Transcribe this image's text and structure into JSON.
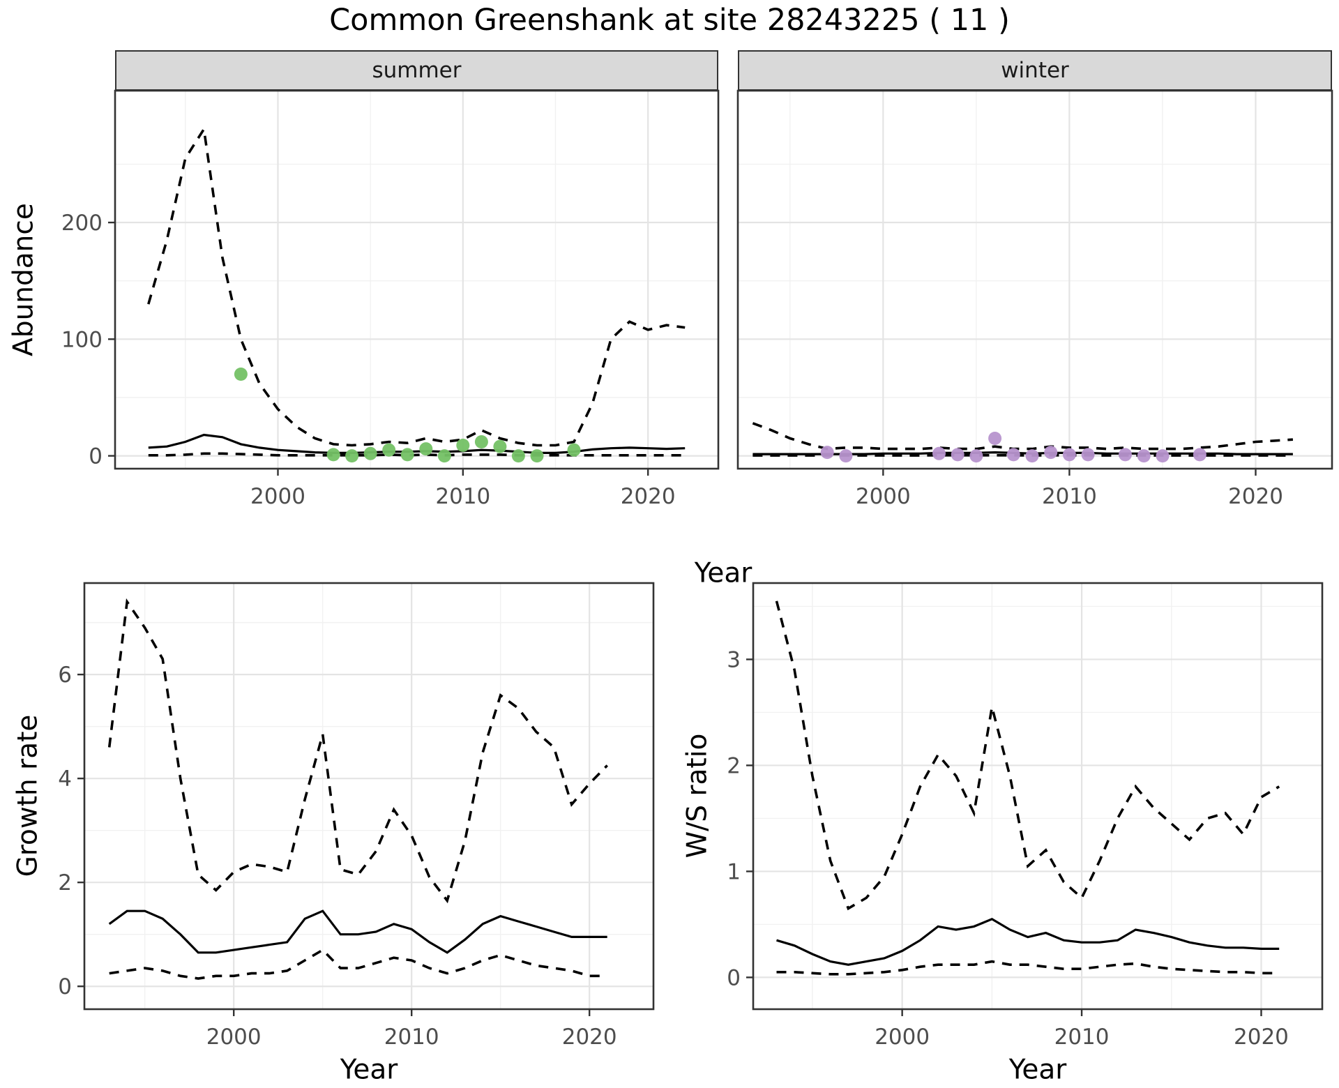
{
  "title": "Common Greenshank at site 28243225 ( 11 )",
  "top_row": {
    "y_axis_title": "Abundance",
    "x_axis_title": "Year",
    "facets": [
      {
        "label": "summer"
      },
      {
        "label": "winter"
      }
    ]
  },
  "bottom_row": {
    "growth": {
      "y_axis_title": "Growth rate",
      "x_axis_title": "Year"
    },
    "ws": {
      "y_axis_title": "W/S ratio",
      "x_axis_title": "Year"
    }
  },
  "colors": {
    "summer_point": "#74C165",
    "winter_point": "#B794CE",
    "line": "#000000",
    "panel_border": "#333333",
    "strip_bg": "#D9D9D9",
    "grid_major": "#E4E4E4",
    "grid_minor": "#F1F1F1",
    "tick_label": "#4d4d4d",
    "tick_mark": "#333333"
  },
  "chart_data": [
    {
      "id": "summer",
      "type": "line",
      "facet_label": "summer",
      "x_label": "Year",
      "y_label": "Abundance",
      "x_range": [
        1991.2,
        2023.8
      ],
      "y_range": [
        -11,
        313
      ],
      "x_ticks": [
        2000,
        2010,
        2020
      ],
      "x_minor": [
        1995,
        2005,
        2015
      ],
      "y_ticks": [
        0,
        100,
        200
      ],
      "y_minor": [
        50,
        150,
        250
      ],
      "x": [
        1993,
        1994,
        1995,
        1996,
        1997,
        1998,
        1999,
        2000,
        2001,
        2002,
        2003,
        2004,
        2005,
        2006,
        2007,
        2008,
        2009,
        2010,
        2011,
        2012,
        2013,
        2014,
        2015,
        2016,
        2017,
        2018,
        2019,
        2020,
        2021,
        2022
      ],
      "series": [
        {
          "name": "upper_95ci",
          "style": "dashed",
          "values": [
            130,
            185,
            255,
            280,
            170,
            100,
            62,
            40,
            25,
            15,
            10,
            9,
            10,
            12,
            11,
            15,
            12,
            14,
            22,
            15,
            11,
            9,
            9,
            12,
            45,
            100,
            115,
            108,
            112,
            110
          ]
        },
        {
          "name": "mean",
          "style": "solid",
          "values": [
            7,
            8,
            12,
            18,
            16,
            10,
            7,
            5,
            4,
            3,
            2.5,
            2.5,
            3,
            3.5,
            3.5,
            4,
            3.5,
            4,
            5,
            4.5,
            3.5,
            2.5,
            2.5,
            3.5,
            5.5,
            6.5,
            7,
            6.5,
            6,
            6.5
          ]
        },
        {
          "name": "lower_95ci",
          "style": "dashed",
          "values": [
            0.5,
            0.5,
            1,
            2,
            2,
            1.5,
            1,
            0.5,
            0.5,
            0.5,
            0.5,
            0.5,
            0.5,
            1,
            0.5,
            1,
            0.5,
            1,
            1,
            1,
            0.5,
            0.5,
            0.5,
            0.5,
            0.5,
            0.5,
            0.5,
            0.5,
            0.5,
            0.5
          ]
        }
      ],
      "points": {
        "name": "observed-counts-summer",
        "color_key": "summer_point",
        "years": [
          1998,
          2003,
          2004,
          2005,
          2006,
          2007,
          2008,
          2009,
          2010,
          2011,
          2012,
          2013,
          2014,
          2016
        ],
        "values": [
          70,
          1,
          0,
          2,
          5,
          1,
          6,
          0,
          9,
          12,
          8,
          0,
          0,
          5
        ]
      }
    },
    {
      "id": "winter",
      "type": "line",
      "facet_label": "winter",
      "x_label": "Year",
      "y_label": "Abundance",
      "x_range": [
        1992.2,
        2024.1
      ],
      "y_range": [
        -11,
        313
      ],
      "x_ticks": [
        2000,
        2010,
        2020
      ],
      "x_minor": [
        1995,
        2005,
        2015
      ],
      "y_ticks": [
        0,
        100,
        200
      ],
      "y_minor": [
        50,
        150,
        250
      ],
      "x": [
        1993,
        1994,
        1995,
        1996,
        1997,
        1998,
        1999,
        2000,
        2001,
        2002,
        2003,
        2004,
        2005,
        2006,
        2007,
        2008,
        2009,
        2010,
        2011,
        2012,
        2013,
        2014,
        2015,
        2016,
        2017,
        2018,
        2019,
        2020,
        2021,
        2022
      ],
      "series": [
        {
          "name": "upper_95ci",
          "style": "dashed",
          "values": [
            28,
            22,
            15,
            10,
            6,
            7,
            7,
            6,
            6,
            6,
            7,
            6,
            6,
            8,
            6,
            6,
            8,
            7,
            7,
            6,
            7,
            6,
            6,
            6,
            7,
            8,
            10,
            12,
            13,
            14
          ]
        },
        {
          "name": "mean",
          "style": "solid",
          "values": [
            1.5,
            1.5,
            1.5,
            1.5,
            1.5,
            1.5,
            1.5,
            2,
            2,
            2,
            2.5,
            2.5,
            2.5,
            3,
            2.5,
            2,
            2.5,
            2.5,
            2.5,
            2,
            2,
            2,
            2,
            2,
            2,
            2,
            1.5,
            1.5,
            1.5,
            1.5
          ]
        },
        {
          "name": "lower_95ci",
          "style": "dashed",
          "values": [
            0.3,
            0.3,
            0.3,
            0.3,
            0.3,
            0.3,
            0.3,
            0.3,
            0.3,
            0.3,
            0.5,
            0.5,
            0.5,
            0.5,
            0.5,
            0.3,
            0.5,
            0.5,
            0.5,
            0.3,
            0.3,
            0.3,
            0.3,
            0.3,
            0.3,
            0.3,
            0.3,
            0.3,
            0.3,
            0.3
          ]
        }
      ],
      "points": {
        "name": "observed-counts-winter",
        "color_key": "winter_point",
        "years": [
          1997,
          1998,
          2003,
          2004,
          2005,
          2006,
          2007,
          2008,
          2009,
          2010,
          2011,
          2013,
          2014,
          2015,
          2017
        ],
        "values": [
          3,
          0,
          2,
          1,
          0,
          15,
          1,
          0,
          3,
          1,
          1,
          1,
          0,
          0,
          1
        ]
      }
    },
    {
      "id": "growth",
      "type": "line",
      "facet_label": "",
      "x_label": "Year",
      "y_label": "Growth rate",
      "x_range": [
        1991.6,
        2023.6
      ],
      "y_range": [
        -0.44,
        7.76
      ],
      "x_ticks": [
        2000,
        2010,
        2020
      ],
      "x_minor": [
        1995,
        2005,
        2015
      ],
      "y_ticks": [
        0,
        2,
        4,
        6
      ],
      "y_minor": [
        1,
        3,
        5,
        7
      ],
      "x": [
        1993,
        1994,
        1995,
        1996,
        1997,
        1998,
        1999,
        2000,
        2001,
        2002,
        2003,
        2004,
        2005,
        2006,
        2007,
        2008,
        2009,
        2010,
        2011,
        2012,
        2013,
        2014,
        2015,
        2016,
        2017,
        2018,
        2019,
        2020,
        2021
      ],
      "series": [
        {
          "name": "upper_95ci",
          "style": "dashed",
          "values": [
            4.6,
            7.4,
            6.9,
            6.3,
            4.0,
            2.15,
            1.85,
            2.2,
            2.35,
            2.3,
            2.2,
            3.6,
            4.85,
            2.25,
            2.15,
            2.6,
            3.4,
            2.9,
            2.1,
            1.65,
            2.8,
            4.5,
            5.6,
            5.35,
            4.9,
            4.6,
            3.5,
            3.9,
            4.25
          ]
        },
        {
          "name": "mean",
          "style": "solid",
          "values": [
            1.2,
            1.45,
            1.45,
            1.3,
            1.0,
            0.65,
            0.65,
            0.7,
            0.75,
            0.8,
            0.85,
            1.3,
            1.45,
            1.0,
            1.0,
            1.05,
            1.2,
            1.1,
            0.85,
            0.65,
            0.9,
            1.2,
            1.35,
            1.25,
            1.15,
            1.05,
            0.95,
            0.95,
            0.95
          ]
        },
        {
          "name": "lower_95ci",
          "style": "dashed",
          "values": [
            0.25,
            0.3,
            0.35,
            0.3,
            0.2,
            0.15,
            0.2,
            0.2,
            0.25,
            0.25,
            0.3,
            0.5,
            0.7,
            0.35,
            0.35,
            0.45,
            0.55,
            0.5,
            0.35,
            0.25,
            0.35,
            0.5,
            0.6,
            0.5,
            0.4,
            0.35,
            0.3,
            0.2,
            0.2
          ]
        }
      ],
      "points": null
    },
    {
      "id": "ws",
      "type": "line",
      "facet_label": "",
      "x_label": "Year",
      "y_label": "W/S ratio",
      "x_range": [
        1991.7,
        2023.4
      ],
      "y_range": [
        -0.3,
        3.72
      ],
      "x_ticks": [
        2000,
        2010,
        2020
      ],
      "x_minor": [
        1995,
        2005,
        2015
      ],
      "y_ticks": [
        0,
        1,
        2,
        3
      ],
      "y_minor": [
        0.5,
        1.5,
        2.5,
        3.5
      ],
      "x": [
        1993,
        1994,
        1995,
        1996,
        1997,
        1998,
        1999,
        2000,
        2001,
        2002,
        2003,
        2004,
        2005,
        2006,
        2007,
        2008,
        2009,
        2010,
        2011,
        2012,
        2013,
        2014,
        2015,
        2016,
        2017,
        2018,
        2019,
        2020,
        2021
      ],
      "series": [
        {
          "name": "upper_95ci",
          "style": "dashed",
          "values": [
            3.55,
            2.9,
            1.9,
            1.1,
            0.65,
            0.75,
            0.95,
            1.35,
            1.8,
            2.1,
            1.9,
            1.55,
            2.55,
            1.9,
            1.05,
            1.2,
            0.9,
            0.75,
            1.1,
            1.5,
            1.8,
            1.6,
            1.45,
            1.3,
            1.5,
            1.55,
            1.35,
            1.7,
            1.8
          ]
        },
        {
          "name": "mean",
          "style": "solid",
          "values": [
            0.35,
            0.3,
            0.22,
            0.15,
            0.12,
            0.15,
            0.18,
            0.25,
            0.35,
            0.48,
            0.45,
            0.48,
            0.55,
            0.45,
            0.38,
            0.42,
            0.35,
            0.33,
            0.33,
            0.35,
            0.45,
            0.42,
            0.38,
            0.33,
            0.3,
            0.28,
            0.28,
            0.27,
            0.27
          ]
        },
        {
          "name": "lower_95ci",
          "style": "dashed",
          "values": [
            0.05,
            0.05,
            0.04,
            0.03,
            0.03,
            0.04,
            0.05,
            0.07,
            0.1,
            0.12,
            0.12,
            0.12,
            0.15,
            0.12,
            0.12,
            0.1,
            0.08,
            0.08,
            0.1,
            0.12,
            0.13,
            0.1,
            0.08,
            0.07,
            0.06,
            0.05,
            0.05,
            0.04,
            0.04
          ]
        }
      ],
      "points": null
    }
  ]
}
